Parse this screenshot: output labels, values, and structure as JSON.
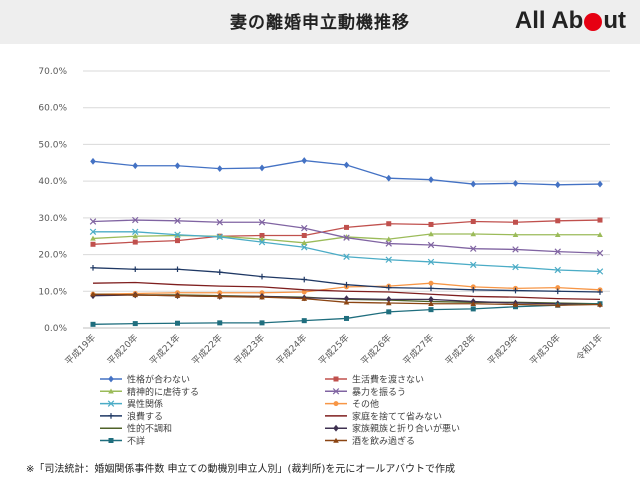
{
  "header": {
    "title": "妻の離婚申立動機推移",
    "logo_text_1": "All Ab",
    "logo_text_2": "ut"
  },
  "footnote": "※「司法統計：婚姻関係事件数 申立ての動機別申立人別」(裁判所)を元にオールアバウトで作成",
  "colors": {
    "logo_accent": "#e60012"
  },
  "chart_data": {
    "type": "line",
    "categories": [
      "平成19年",
      "平成20年",
      "平成21年",
      "平成22年",
      "平成23年",
      "平成24年",
      "平成25年",
      "平成26年",
      "平成27年",
      "平成28年",
      "平成29年",
      "平成30年",
      "令和1年"
    ],
    "ylim": [
      0,
      70
    ],
    "yticks": [
      "0.0%",
      "10.0%",
      "20.0%",
      "30.0%",
      "40.0%",
      "50.0%",
      "60.0%",
      "70.0%"
    ],
    "grid": true,
    "legend_position": "bottom",
    "series": [
      {
        "name": "性格が合わない",
        "color": "#4472c4",
        "marker": "diamond",
        "values": [
          45.4,
          44.2,
          44.2,
          43.4,
          43.6,
          45.6,
          44.4,
          40.8,
          40.4,
          39.2,
          39.4,
          39.0,
          39.2
        ]
      },
      {
        "name": "生活費を渡さない",
        "color": "#c0504d",
        "marker": "square",
        "values": [
          22.8,
          23.4,
          23.8,
          25.0,
          25.2,
          25.2,
          27.4,
          28.4,
          28.2,
          29.0,
          28.8,
          29.2,
          29.4
        ]
      },
      {
        "name": "精神的に虐待する",
        "color": "#9bbb59",
        "marker": "triangle",
        "values": [
          24.4,
          25.0,
          25.2,
          25.0,
          24.2,
          23.2,
          24.8,
          24.2,
          25.6,
          25.6,
          25.4,
          25.4,
          25.4
        ]
      },
      {
        "name": "暴力を振るう",
        "color": "#8064a2",
        "marker": "x",
        "values": [
          29.0,
          29.4,
          29.2,
          28.8,
          28.8,
          27.2,
          24.6,
          23.0,
          22.6,
          21.6,
          21.4,
          20.8,
          20.4
        ]
      },
      {
        "name": "異性関係",
        "color": "#4bacc6",
        "marker": "x",
        "values": [
          26.2,
          26.2,
          25.4,
          24.8,
          23.4,
          22.0,
          19.4,
          18.6,
          18.0,
          17.2,
          16.6,
          15.8,
          15.4
        ]
      },
      {
        "name": "その他",
        "color": "#f79646",
        "marker": "circle",
        "values": [
          9.2,
          9.4,
          9.6,
          9.6,
          9.6,
          9.8,
          11.2,
          11.4,
          12.2,
          11.2,
          10.8,
          11.0,
          10.4
        ]
      },
      {
        "name": "浪費する",
        "color": "#1f3864",
        "marker": "plus",
        "values": [
          16.4,
          16.0,
          16.0,
          15.2,
          14.0,
          13.2,
          11.8,
          11.0,
          10.8,
          10.4,
          10.2,
          10.0,
          9.8
        ]
      },
      {
        "name": "家庭を捨てて省みない",
        "color": "#7f1f1f",
        "marker": "none",
        "values": [
          12.2,
          12.4,
          11.8,
          11.4,
          11.2,
          10.4,
          10.0,
          9.8,
          9.2,
          8.6,
          8.4,
          8.0,
          7.8
        ]
      },
      {
        "name": "性的不調和",
        "color": "#4f6228",
        "marker": "none",
        "values": [
          9.2,
          9.0,
          9.0,
          8.8,
          8.6,
          8.4,
          7.8,
          7.6,
          7.2,
          7.0,
          7.0,
          6.8,
          6.6
        ]
      },
      {
        "name": "家族親族と折り合いが悪い",
        "color": "#3f3151",
        "marker": "diamond",
        "values": [
          8.8,
          9.0,
          8.8,
          8.6,
          8.6,
          8.2,
          8.0,
          7.8,
          7.8,
          7.2,
          6.8,
          6.6,
          6.4
        ]
      },
      {
        "name": "不詳",
        "color": "#1f6e7e",
        "marker": "square",
        "values": [
          1.0,
          1.2,
          1.3,
          1.4,
          1.4,
          2.0,
          2.6,
          4.4,
          5.0,
          5.2,
          5.8,
          6.2,
          6.6
        ]
      },
      {
        "name": "酒を飲み過ぎる",
        "color": "#8b4513",
        "marker": "triangle",
        "values": [
          9.2,
          9.0,
          8.8,
          8.6,
          8.4,
          8.0,
          7.0,
          6.8,
          6.6,
          6.6,
          6.4,
          6.2,
          6.4
        ]
      }
    ]
  }
}
